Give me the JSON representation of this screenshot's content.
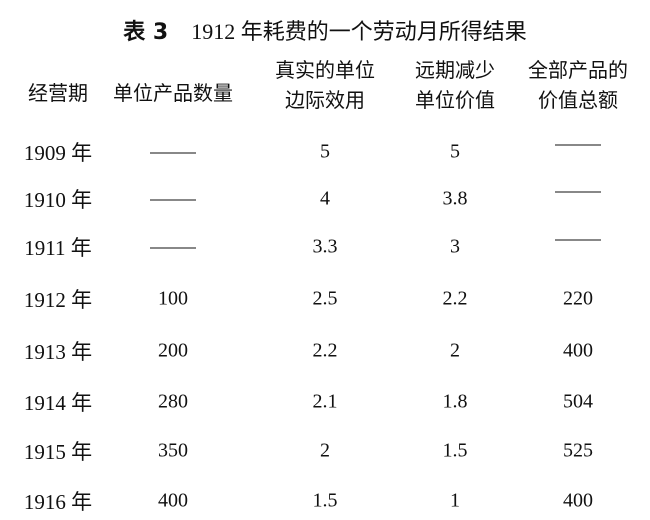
{
  "title": {
    "label": "表 3",
    "text": "1912 年耗费的一个劳动月所得结果"
  },
  "columns": [
    [
      "经营期"
    ],
    [
      "单位产品数量"
    ],
    [
      "真实的单位",
      "边际效用"
    ],
    [
      "远期减少",
      "单位价值"
    ],
    [
      "全部产品的",
      "价值总额"
    ]
  ],
  "rows": [
    [
      "1909 年",
      "—",
      "5",
      "5",
      "—"
    ],
    [
      "1910 年",
      "—",
      "4",
      "3.8",
      "—"
    ],
    [
      "1911 年",
      "—",
      "3.3",
      "3",
      "—"
    ],
    [
      "1912 年",
      "100",
      "2.5",
      "2.2",
      "220"
    ],
    [
      "1913 年",
      "200",
      "2.2",
      "2",
      "400"
    ],
    [
      "1914 年",
      "280",
      "2.1",
      "1.8",
      "504"
    ],
    [
      "1915 年",
      "350",
      "2",
      "1.5",
      "525"
    ],
    [
      "1916 年",
      "400",
      "1.5",
      "1",
      "400"
    ]
  ]
}
